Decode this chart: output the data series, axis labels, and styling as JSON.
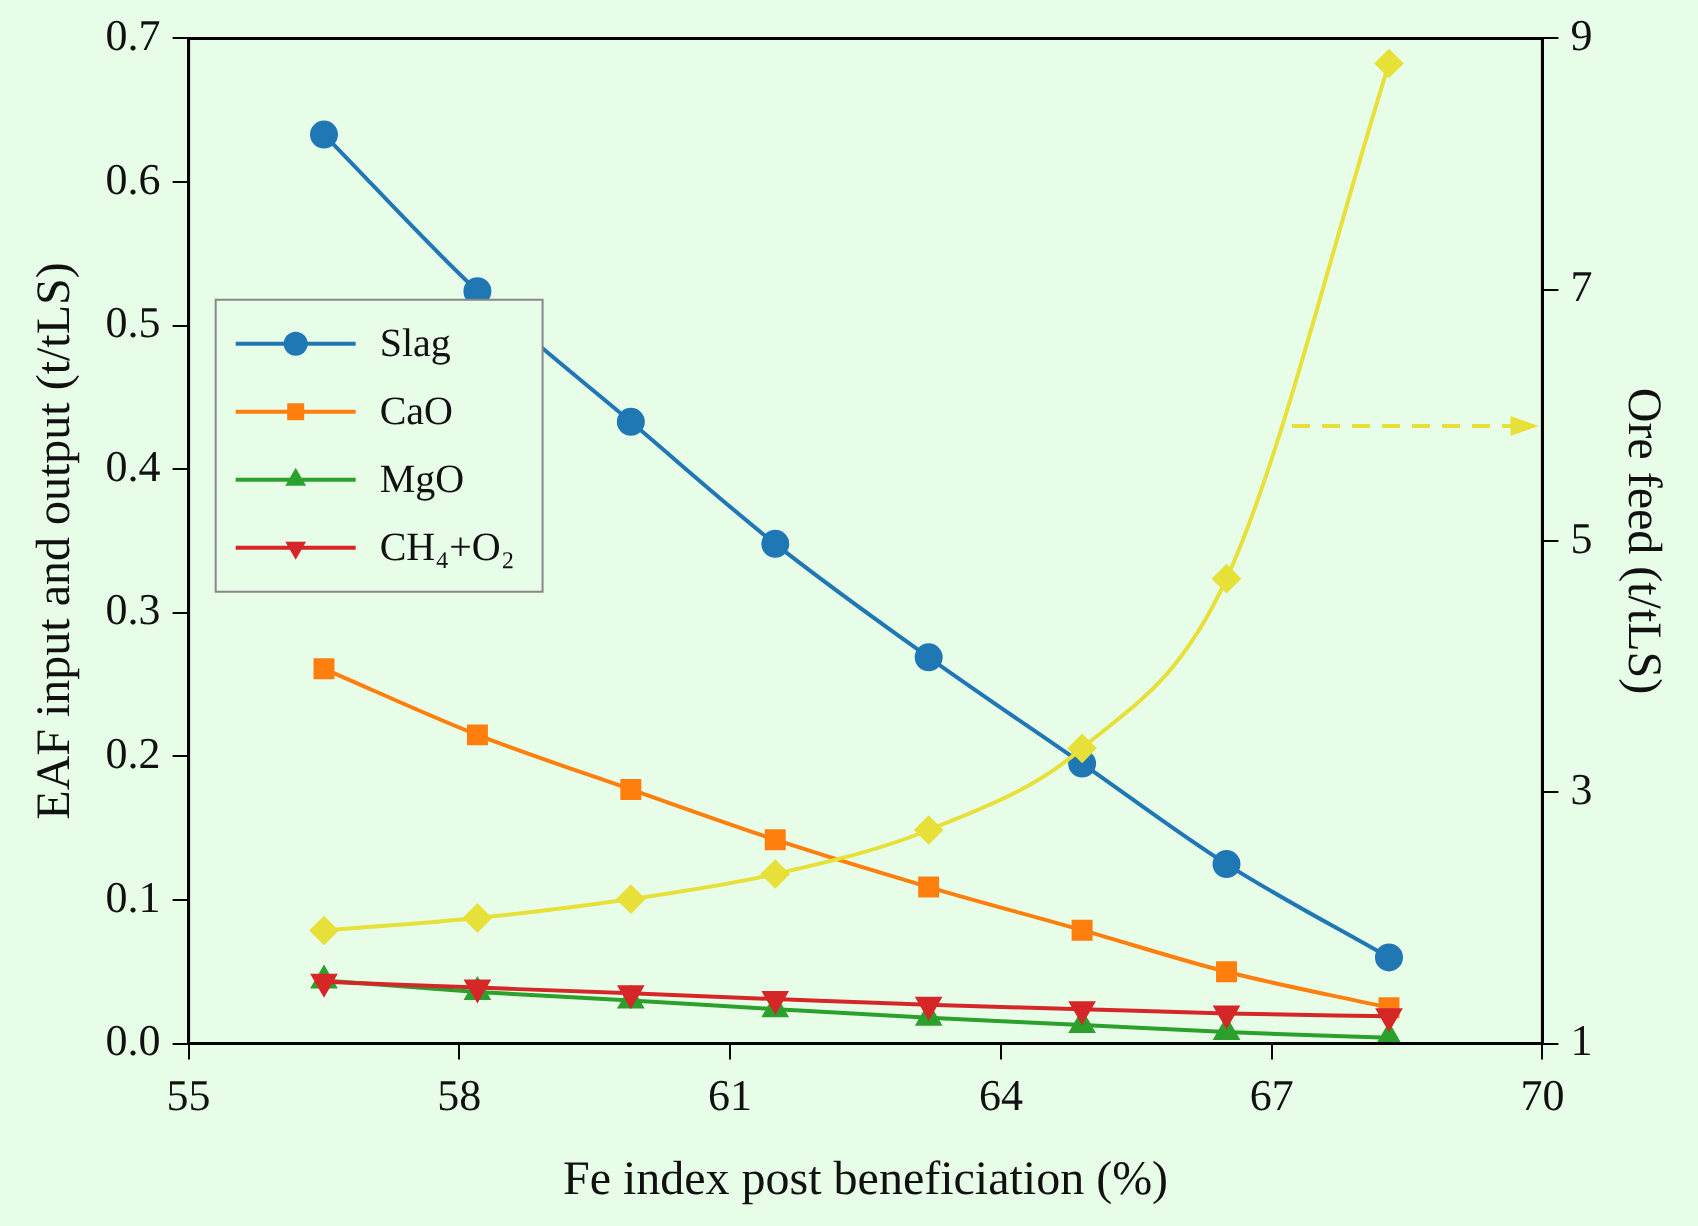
{
  "chart_data": {
    "type": "line",
    "xlabel": "Fe index post beneficiation (%)",
    "ylabel": "EAF input and output (t/tLS)",
    "y2label": "Ore feed (t/tLS)",
    "x": [
      56.5,
      58.2,
      59.9,
      61.5,
      63.2,
      64.9,
      66.5,
      68.3
    ],
    "xlim": [
      55,
      70
    ],
    "xticks": [
      55,
      58,
      61,
      64,
      67,
      70
    ],
    "ylim": [
      0,
      0.7
    ],
    "yticks": [
      {
        "value": 0,
        "label": "0.0"
      },
      0.1,
      0.2,
      0.3,
      0.4,
      0.5,
      0.6,
      0.7
    ],
    "y2lim": [
      1,
      9
    ],
    "y2ticks": [
      1,
      3,
      5,
      7,
      9
    ],
    "grid": false,
    "legend": "left",
    "series": [
      {
        "name": "Slag",
        "color": "#1f77b4",
        "marker": "circle",
        "values": [
          0.633,
          0.524,
          0.433,
          0.348,
          0.269,
          0.195,
          0.125,
          0.06
        ]
      },
      {
        "name": "CaO",
        "color": "#ff7f0e",
        "marker": "square",
        "values": [
          0.261,
          0.215,
          0.177,
          0.142,
          0.109,
          0.079,
          0.05,
          0.025
        ]
      },
      {
        "name": "MgO",
        "color": "#2ca02c",
        "marker": "triangle",
        "values": [
          0.044,
          0.036,
          0.03,
          0.024,
          0.018,
          0.013,
          0.008,
          0.004
        ]
      },
      {
        "name": "CH₄+O₂",
        "color": "#d62728",
        "marker": "triangle-down",
        "values": [
          0.043,
          0.039,
          0.035,
          0.031,
          0.027,
          0.024,
          0.021,
          0.019
        ]
      },
      {
        "color": "#e6e038",
        "marker": "diamond",
        "axis": "y2",
        "values": [
          1.9,
          2.0,
          2.15,
          2.35,
          2.7,
          3.35,
          4.7,
          8.8
        ]
      }
    ]
  }
}
